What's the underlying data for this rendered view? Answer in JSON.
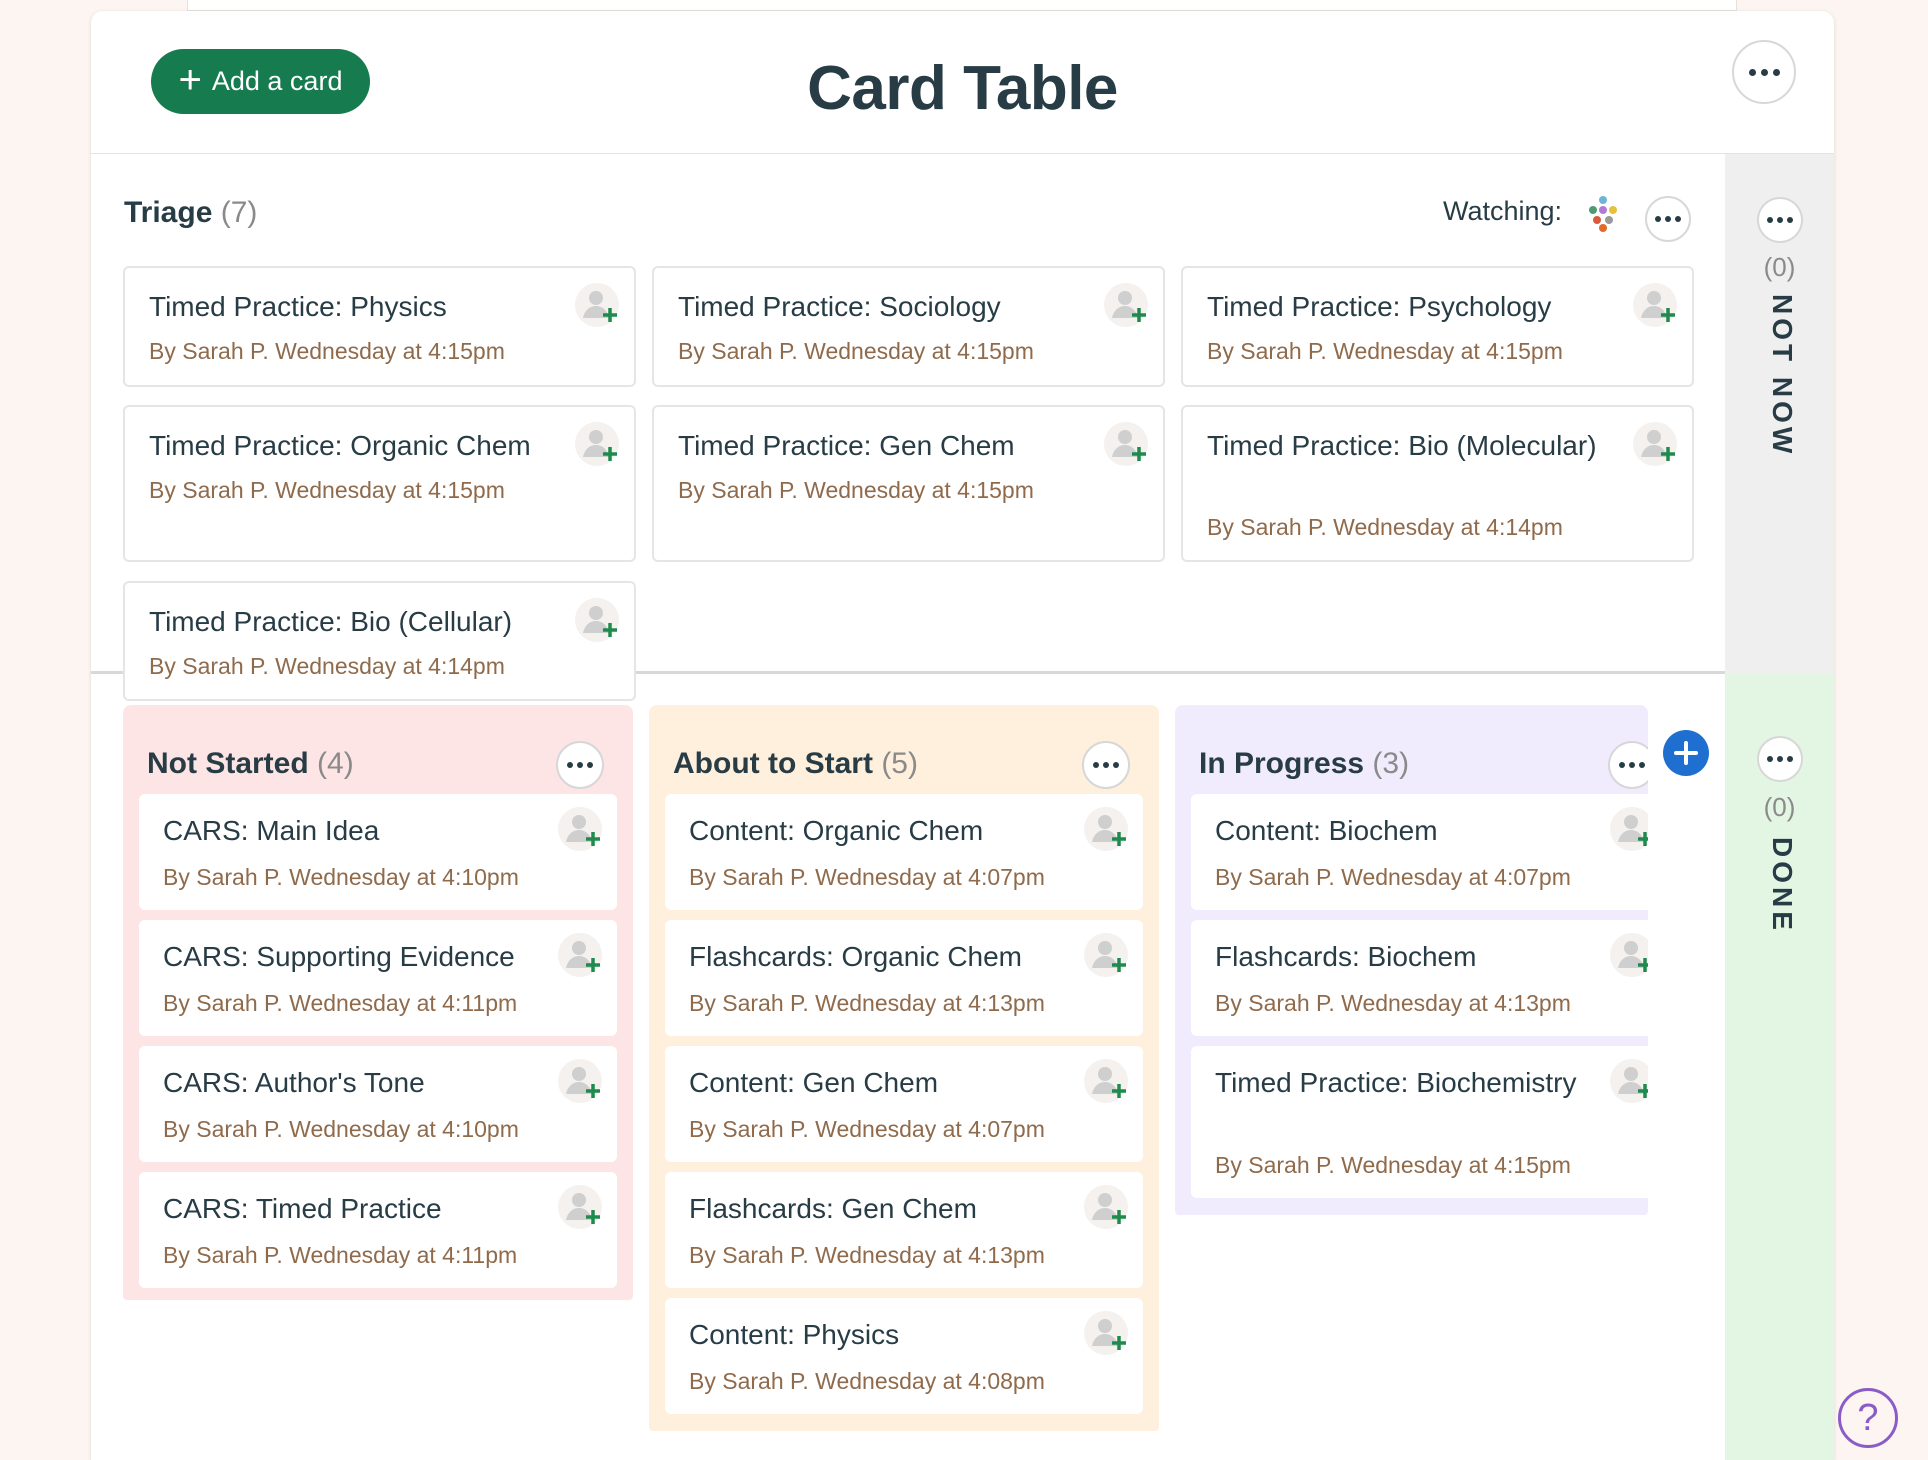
{
  "header": {
    "add_label": "Add a card",
    "title": "Card Table"
  },
  "triage": {
    "title": "Triage",
    "count": "(7)",
    "watching_label": "Watching:",
    "cards": [
      {
        "title": "Timed Practice: Physics",
        "meta": "By Sarah P. Wednesday at 4:15pm"
      },
      {
        "title": "Timed Practice: Sociology",
        "meta": "By Sarah P. Wednesday at 4:15pm"
      },
      {
        "title": "Timed Practice: Psychology",
        "meta": "By Sarah P. Wednesday at 4:15pm"
      },
      {
        "title": "Timed Practice: Organic Chem",
        "meta": "By Sarah P. Wednesday at 4:15pm"
      },
      {
        "title": "Timed Practice: Gen Chem",
        "meta": "By Sarah P. Wednesday at 4:15pm"
      },
      {
        "title": "Timed Practice: Bio (Molecular)",
        "meta": "By Sarah P. Wednesday at 4:14pm"
      },
      {
        "title": "Timed Practice: Bio (Cellular)",
        "meta": "By Sarah P. Wednesday at 4:14pm"
      }
    ]
  },
  "side": {
    "not_now": {
      "count": "(0)",
      "label": "NOT NOW"
    },
    "done": {
      "count": "(0)",
      "label": "DONE"
    }
  },
  "columns": [
    {
      "title": "Not Started",
      "count": "(4)",
      "color": "#fde5e5",
      "cards": [
        {
          "title": "CARS: Main Idea",
          "meta": "By Sarah P. Wednesday at 4:10pm"
        },
        {
          "title": "CARS: Supporting Evidence",
          "meta": "By Sarah P. Wednesday at 4:11pm"
        },
        {
          "title": "CARS: Author's Tone",
          "meta": "By Sarah P. Wednesday at 4:10pm"
        },
        {
          "title": "CARS: Timed Practice",
          "meta": "By Sarah P. Wednesday at 4:11pm"
        }
      ]
    },
    {
      "title": "About to Start",
      "count": "(5)",
      "color": "#fef0dd",
      "cards": [
        {
          "title": "Content: Organic Chem",
          "meta": "By Sarah P. Wednesday at 4:07pm"
        },
        {
          "title": "Flashcards: Organic Chem",
          "meta": "By Sarah P. Wednesday at 4:13pm"
        },
        {
          "title": "Content: Gen Chem",
          "meta": "By Sarah P. Wednesday at 4:07pm"
        },
        {
          "title": "Flashcards: Gen Chem",
          "meta": "By Sarah P. Wednesday at 4:13pm"
        },
        {
          "title": "Content: Physics",
          "meta": "By Sarah P. Wednesday at 4:08pm"
        }
      ]
    },
    {
      "title": "In Progress",
      "count": "(3)",
      "color": "#f1ecfd",
      "cards": [
        {
          "title": "Content: Biochem",
          "meta": "By Sarah P. Wednesday at 4:07pm"
        },
        {
          "title": "Flashcards: Biochem",
          "meta": "By Sarah P. Wednesday at 4:13pm"
        },
        {
          "title": "Timed Practice: Biochemistry",
          "meta": "By Sarah P. Wednesday at 4:15pm"
        }
      ]
    }
  ],
  "help": {
    "label": "?"
  },
  "colors": {
    "brand_green": "#167c4f",
    "blue": "#1f6fd1",
    "meta_brown": "#8f6a4b",
    "not_now_bg": "#efefef",
    "done_bg": "#e3f5e3"
  }
}
